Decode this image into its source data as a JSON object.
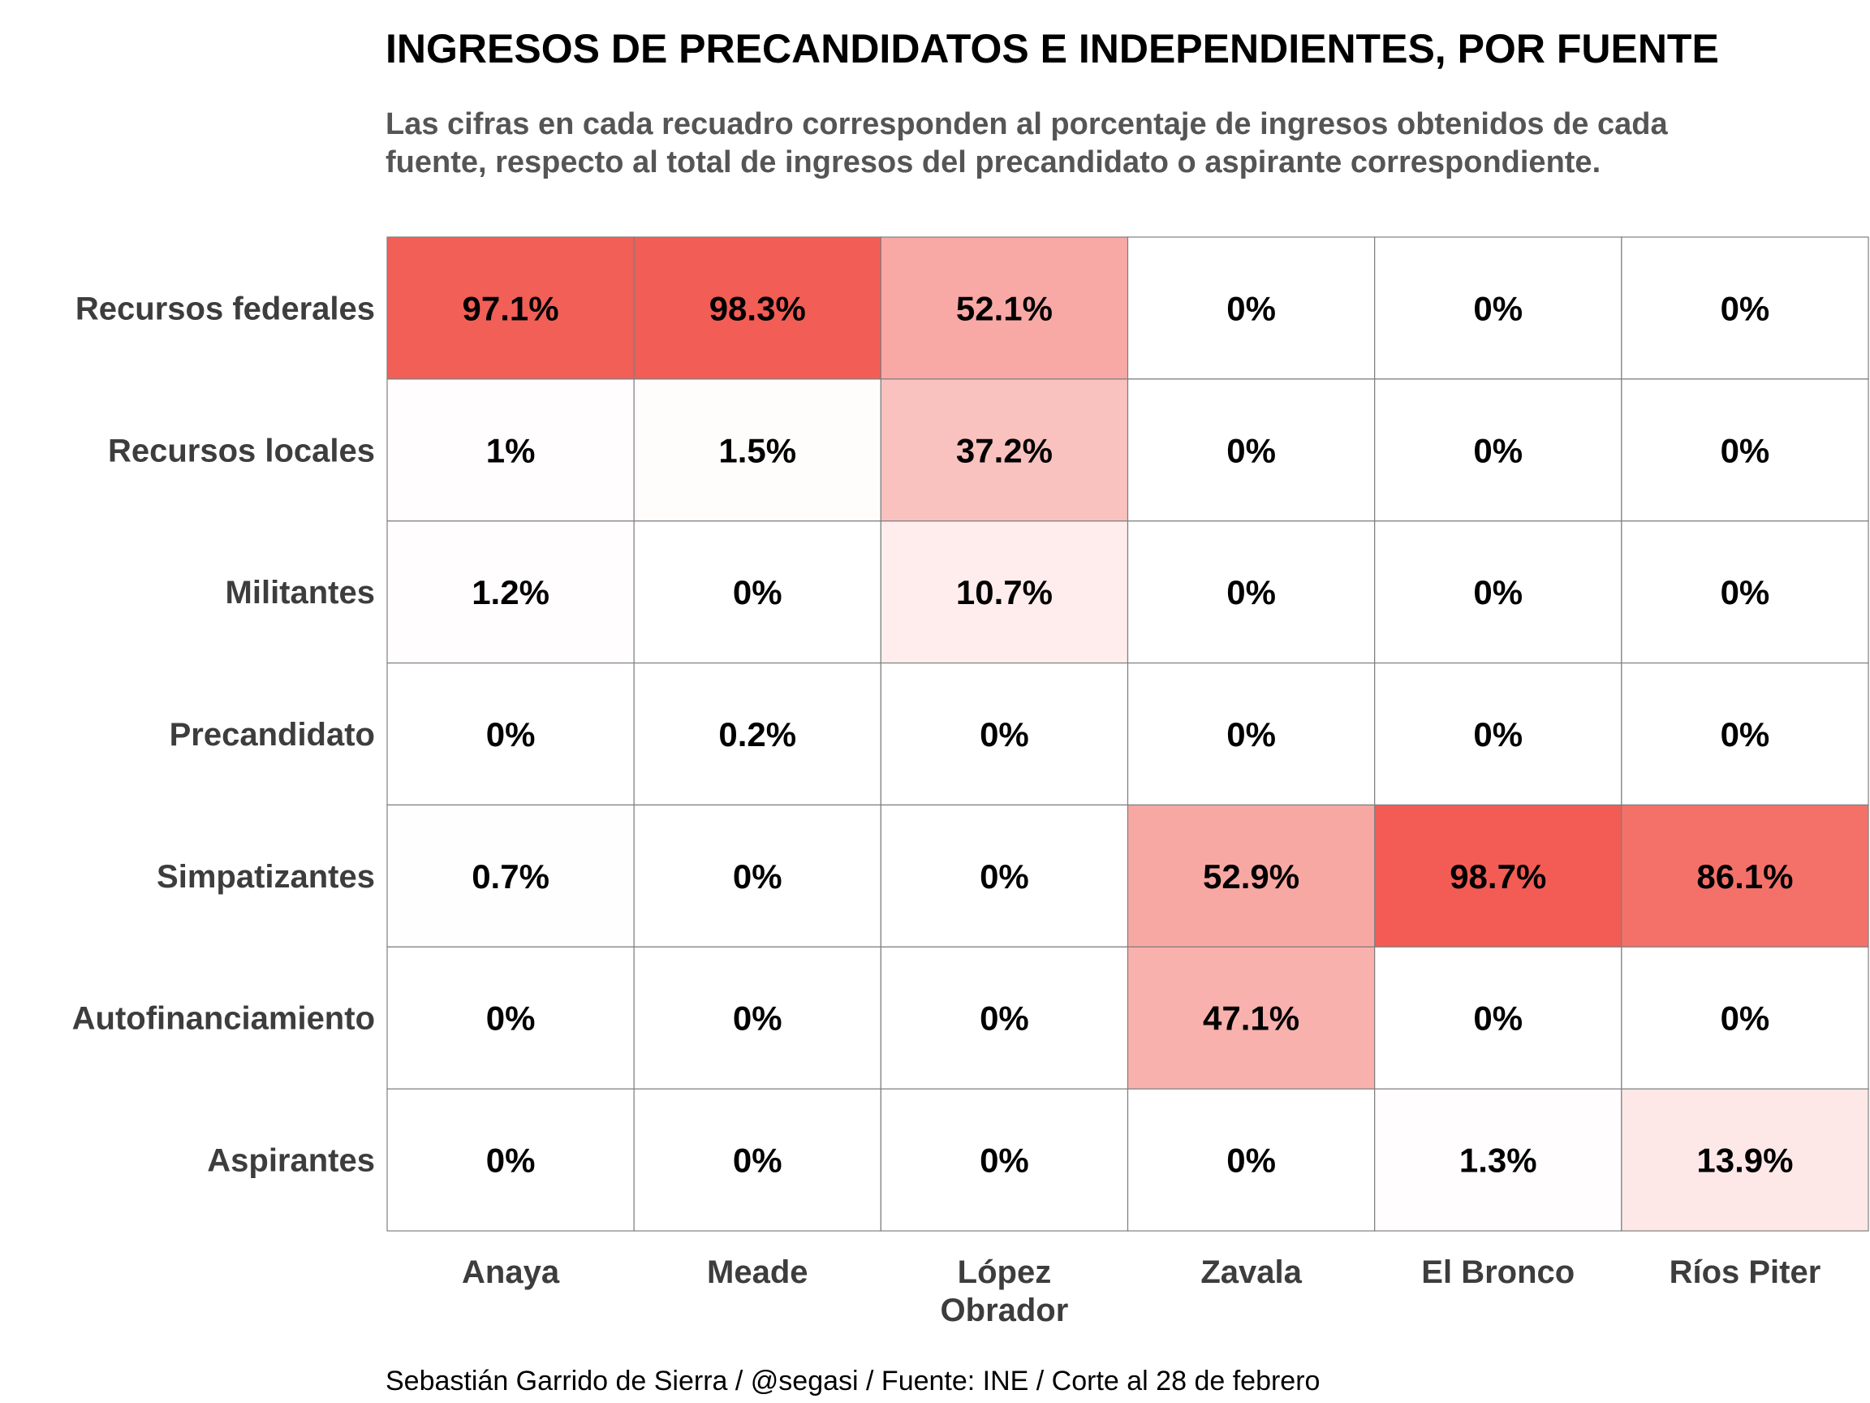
{
  "chart_data": {
    "type": "heatmap",
    "title": "INGRESOS DE PRECANDIDATOS E INDEPENDIENTES, POR FUENTE",
    "subtitle": [
      "Las cifras en cada recuadro corresponden al porcentaje de ingresos obtenidos de cada",
      "fuente, respecto al total de ingresos del precandidato o aspirante correspondiente."
    ],
    "caption": "Sebastián Garrido de Sierra / @segasi / Fuente: INE / Corte al 28 de febrero",
    "columns": [
      [
        "Anaya"
      ],
      [
        "Meade"
      ],
      [
        "López",
        "Obrador"
      ],
      [
        "Zavala"
      ],
      [
        "El Bronco"
      ],
      [
        "Ríos Piter"
      ]
    ],
    "rows": [
      "Recursos federales",
      "Recursos locales",
      "Militantes",
      "Precandidato",
      "Simpatizantes",
      "Autofinanciamiento",
      "Aspirantes"
    ],
    "values": [
      [
        97.1,
        98.3,
        52.1,
        0,
        0,
        0
      ],
      [
        1,
        1.5,
        37.2,
        0,
        0,
        0
      ],
      [
        1.2,
        0,
        10.7,
        0,
        0,
        0
      ],
      [
        0,
        0.2,
        0,
        0,
        0,
        0
      ],
      [
        0.7,
        0,
        0,
        52.9,
        98.7,
        86.1
      ],
      [
        0,
        0,
        0,
        47.1,
        0,
        0
      ],
      [
        0,
        0,
        0,
        0,
        1.3,
        13.9
      ]
    ],
    "value_suffix": "%",
    "color_scale": {
      "min_value": 0,
      "max_value": 100,
      "low_color": "#ffffff",
      "high_color": "#f25a52"
    },
    "cell_border_color": "#7f7f7f",
    "grid": true,
    "legend": "none"
  }
}
